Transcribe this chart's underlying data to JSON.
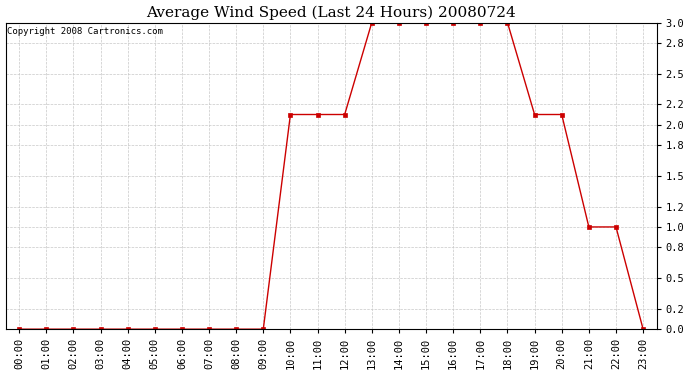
{
  "title": "Average Wind Speed (Last 24 Hours) 20080724",
  "copyright_text": "Copyright 2008 Cartronics.com",
  "hours": [
    "00:00",
    "01:00",
    "02:00",
    "03:00",
    "04:00",
    "05:00",
    "06:00",
    "07:00",
    "08:00",
    "09:00",
    "10:00",
    "11:00",
    "12:00",
    "13:00",
    "14:00",
    "15:00",
    "16:00",
    "17:00",
    "18:00",
    "19:00",
    "20:00",
    "21:00",
    "22:00",
    "23:00"
  ],
  "values": [
    0.0,
    0.0,
    0.0,
    0.0,
    0.0,
    0.0,
    0.0,
    0.0,
    0.0,
    0.0,
    2.1,
    2.1,
    2.1,
    3.0,
    3.0,
    3.0,
    3.0,
    3.0,
    3.0,
    2.1,
    2.1,
    1.0,
    1.0,
    0.0
  ],
  "ylim": [
    0.0,
    3.0
  ],
  "yticks": [
    0.0,
    0.2,
    0.5,
    0.8,
    1.0,
    1.2,
    1.5,
    1.8,
    2.0,
    2.2,
    2.5,
    2.8,
    3.0
  ],
  "line_color": "#cc0000",
  "marker_color": "#cc0000",
  "grid_color": "#c8c8c8",
  "bg_color": "#ffffff",
  "title_fontsize": 11,
  "copyright_fontsize": 6.5,
  "tick_fontsize": 7.5,
  "fig_width": 6.9,
  "fig_height": 3.75,
  "dpi": 100
}
